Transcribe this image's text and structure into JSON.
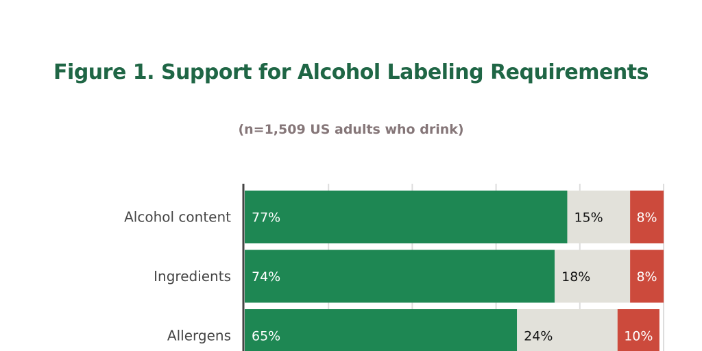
{
  "chart_data": {
    "type": "stacked-bar-horizontal",
    "title": "Figure 1. Support for Alcohol Labeling Requirements",
    "subtitle": "(n=1,509 US adults who drink)",
    "categories": [
      "Alcohol content",
      "Ingredients",
      "Allergens"
    ],
    "series": [
      {
        "values": [
          77,
          74,
          65
        ],
        "color": "#1e8753",
        "label_color": "#ffffff"
      },
      {
        "values": [
          15,
          18,
          24
        ],
        "color": "#e2e1da",
        "label_color": "#111111"
      },
      {
        "values": [
          8,
          8,
          10
        ],
        "color": "#cc4a3c",
        "label_color": "#ffffff"
      }
    ],
    "labels": [
      [
        "77%",
        "15%",
        "8%"
      ],
      [
        "74%",
        "18%",
        "8%"
      ],
      [
        "65%",
        "24%",
        "10%"
      ]
    ],
    "xlim": [
      0,
      100
    ],
    "grid": true
  }
}
